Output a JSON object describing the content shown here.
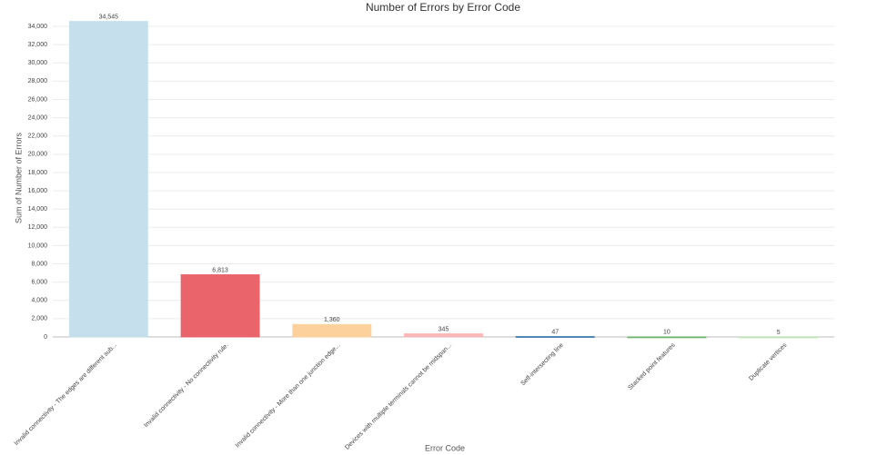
{
  "chart_data": {
    "type": "bar",
    "title": "Number of Errors by Error Code",
    "x_label": "Error Code",
    "y_label": "Sum of Number of Errors",
    "categories": [
      "Invalid connectivity - The edges are different sub...",
      "Invalid connectivity - No connectivity rule.",
      "Invalid connectivity - More than one junction edge...",
      "Devices with multiple terminals cannot be midspan...",
      "Self-intersecting line",
      "Stacked point features",
      "Duplicate vertices"
    ],
    "values": [
      34545,
      6813,
      1360,
      345,
      47,
      10,
      5
    ],
    "value_labels": [
      "34,545",
      "6,813",
      "1,360",
      "345",
      "47",
      "10",
      "5"
    ],
    "colors": [
      "#c2deeb",
      "#e85d63",
      "#fccf96",
      "#f9b4b4",
      "#3a78ad",
      "#6bb569",
      "#bde3b1"
    ],
    "ylim": [
      0,
      34700
    ],
    "yticks": [
      0,
      {
        "value": 2000,
        "label": "2,000"
      },
      {
        "value": 4000,
        "label": "4,000"
      },
      {
        "value": 6000,
        "label": "6,000"
      },
      {
        "value": 8000,
        "label": "8,000"
      },
      {
        "value": 10000,
        "label": "10,000"
      },
      {
        "value": 12000,
        "label": "12,000"
      },
      {
        "value": 14000,
        "label": "14,000"
      },
      {
        "value": 16000,
        "label": "16,000"
      },
      {
        "value": 18000,
        "label": "18,000"
      },
      {
        "value": 20000,
        "label": "20,000"
      },
      {
        "value": 22000,
        "label": "22,000"
      },
      {
        "value": 24000,
        "label": "24,000"
      },
      {
        "value": 26000,
        "label": "26,000"
      },
      {
        "value": 28000,
        "label": "28,000"
      },
      {
        "value": 30000,
        "label": "30,000"
      },
      {
        "value": 32000,
        "label": "32,000"
      },
      {
        "value": 34000,
        "label": "34,000"
      }
    ],
    "grid": true
  }
}
